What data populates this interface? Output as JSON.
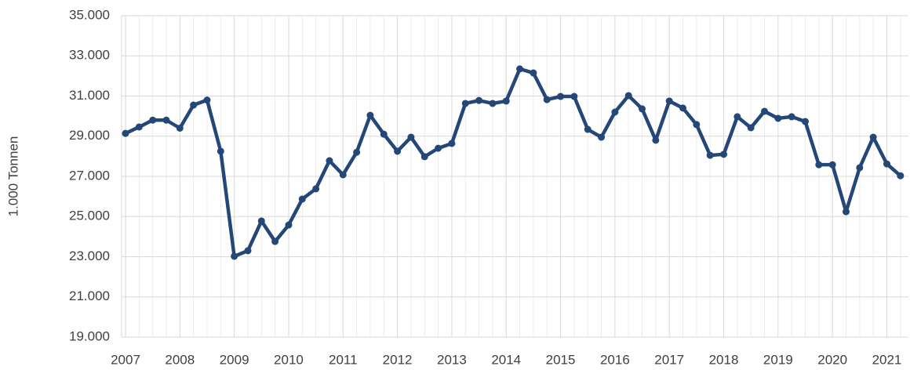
{
  "chart_data": {
    "type": "line",
    "y_label": "1.000 Tonnen",
    "categories": [
      "2007",
      null,
      null,
      null,
      "2008",
      null,
      null,
      null,
      "2009",
      null,
      null,
      null,
      "2010",
      null,
      null,
      null,
      "2011",
      null,
      null,
      null,
      "2012",
      null,
      null,
      null,
      "2013",
      null,
      null,
      null,
      "2014",
      null,
      null,
      null,
      "2015",
      null,
      null,
      null,
      "2016",
      null,
      null,
      null,
      "2017",
      null,
      null,
      null,
      "2018",
      null,
      null,
      null,
      "2019",
      null,
      null,
      null,
      "2020",
      null,
      null,
      null,
      "2021",
      null
    ],
    "values": [
      29140,
      29460,
      29800,
      29800,
      29400,
      30550,
      30800,
      28250,
      23020,
      23300,
      24780,
      23760,
      24580,
      25870,
      26380,
      27780,
      27080,
      28200,
      30040,
      29100,
      28250,
      28950,
      27980,
      28400,
      28640,
      30630,
      30780,
      30630,
      30750,
      32350,
      32150,
      30820,
      30980,
      30980,
      29340,
      28950,
      30200,
      31020,
      30360,
      28800,
      30750,
      30400,
      29580,
      28050,
      28100,
      29970,
      29420,
      30240,
      29890,
      29970,
      29730,
      27580,
      27580,
      25240,
      27430,
      28950,
      27620,
      27030
    ],
    "color": "#254777",
    "ylim": [
      19000,
      35000
    ],
    "yticks": [
      {
        "value": 19000,
        "label": "19.000"
      },
      {
        "value": 21000,
        "label": "21.000"
      },
      {
        "value": 23000,
        "label": "23.000"
      },
      {
        "value": 25000,
        "label": "25.000"
      },
      {
        "value": 27000,
        "label": "27.000"
      },
      {
        "value": 29000,
        "label": "29.000"
      },
      {
        "value": 31000,
        "label": "31.000"
      },
      {
        "value": 33000,
        "label": "33.000"
      },
      {
        "value": 35000,
        "label": "35.000"
      }
    ],
    "grid": true
  }
}
